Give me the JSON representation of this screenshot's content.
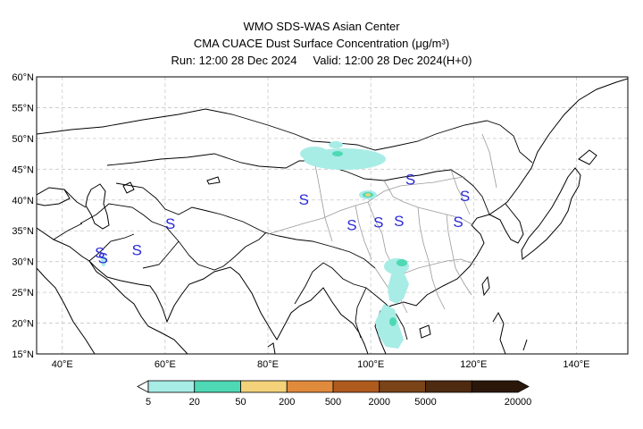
{
  "header": {
    "line1": "WMO SDS-WAS Asian Center",
    "line2": "CMA CUACE Dust Surface Concentration (μg/m³)",
    "run_label": "Run: 12:00 28 Dec 2024",
    "valid_label": "Valid: 12:00 28 Dec 2024(H+0)"
  },
  "map": {
    "lon_range": [
      35,
      150
    ],
    "lat_range": [
      15,
      60
    ],
    "lat_ticks": [
      "15°N",
      "20°N",
      "25°N",
      "30°N",
      "35°N",
      "40°N",
      "45°N",
      "50°N",
      "55°N",
      "60°N"
    ],
    "lon_ticks": [
      "40°E",
      "60°E",
      "80°E",
      "100°E",
      "120°E",
      "140°E"
    ],
    "grid": true,
    "marker_symbol": "S",
    "markers": [
      {
        "lon": 47.3,
        "lat": 31.5
      },
      {
        "lon": 47.9,
        "lat": 30.6
      },
      {
        "lon": 54.5,
        "lat": 31.9
      },
      {
        "lon": 61.0,
        "lat": 36.2
      },
      {
        "lon": 87.0,
        "lat": 40.1
      },
      {
        "lon": 96.3,
        "lat": 36.0
      },
      {
        "lon": 101.5,
        "lat": 36.4
      },
      {
        "lon": 105.5,
        "lat": 36.6
      },
      {
        "lon": 107.7,
        "lat": 43.4
      },
      {
        "lon": 117.0,
        "lat": 36.5
      },
      {
        "lon": 118.3,
        "lat": 40.7
      }
    ],
    "marker_color": "#2a2ad8",
    "dust_colors": [
      "#a8ece6",
      "#4ed9b4",
      "#f3d27a"
    ]
  },
  "colorbar": {
    "levels": [
      "5",
      "20",
      "50",
      "200",
      "500",
      "2000",
      "5000",
      "20000"
    ],
    "colors": [
      "#a8ece6",
      "#4ed9b4",
      "#f3d27a",
      "#e08a3c",
      "#b05b1e",
      "#7a4318",
      "#4e2a10",
      "#2a170a"
    ]
  }
}
